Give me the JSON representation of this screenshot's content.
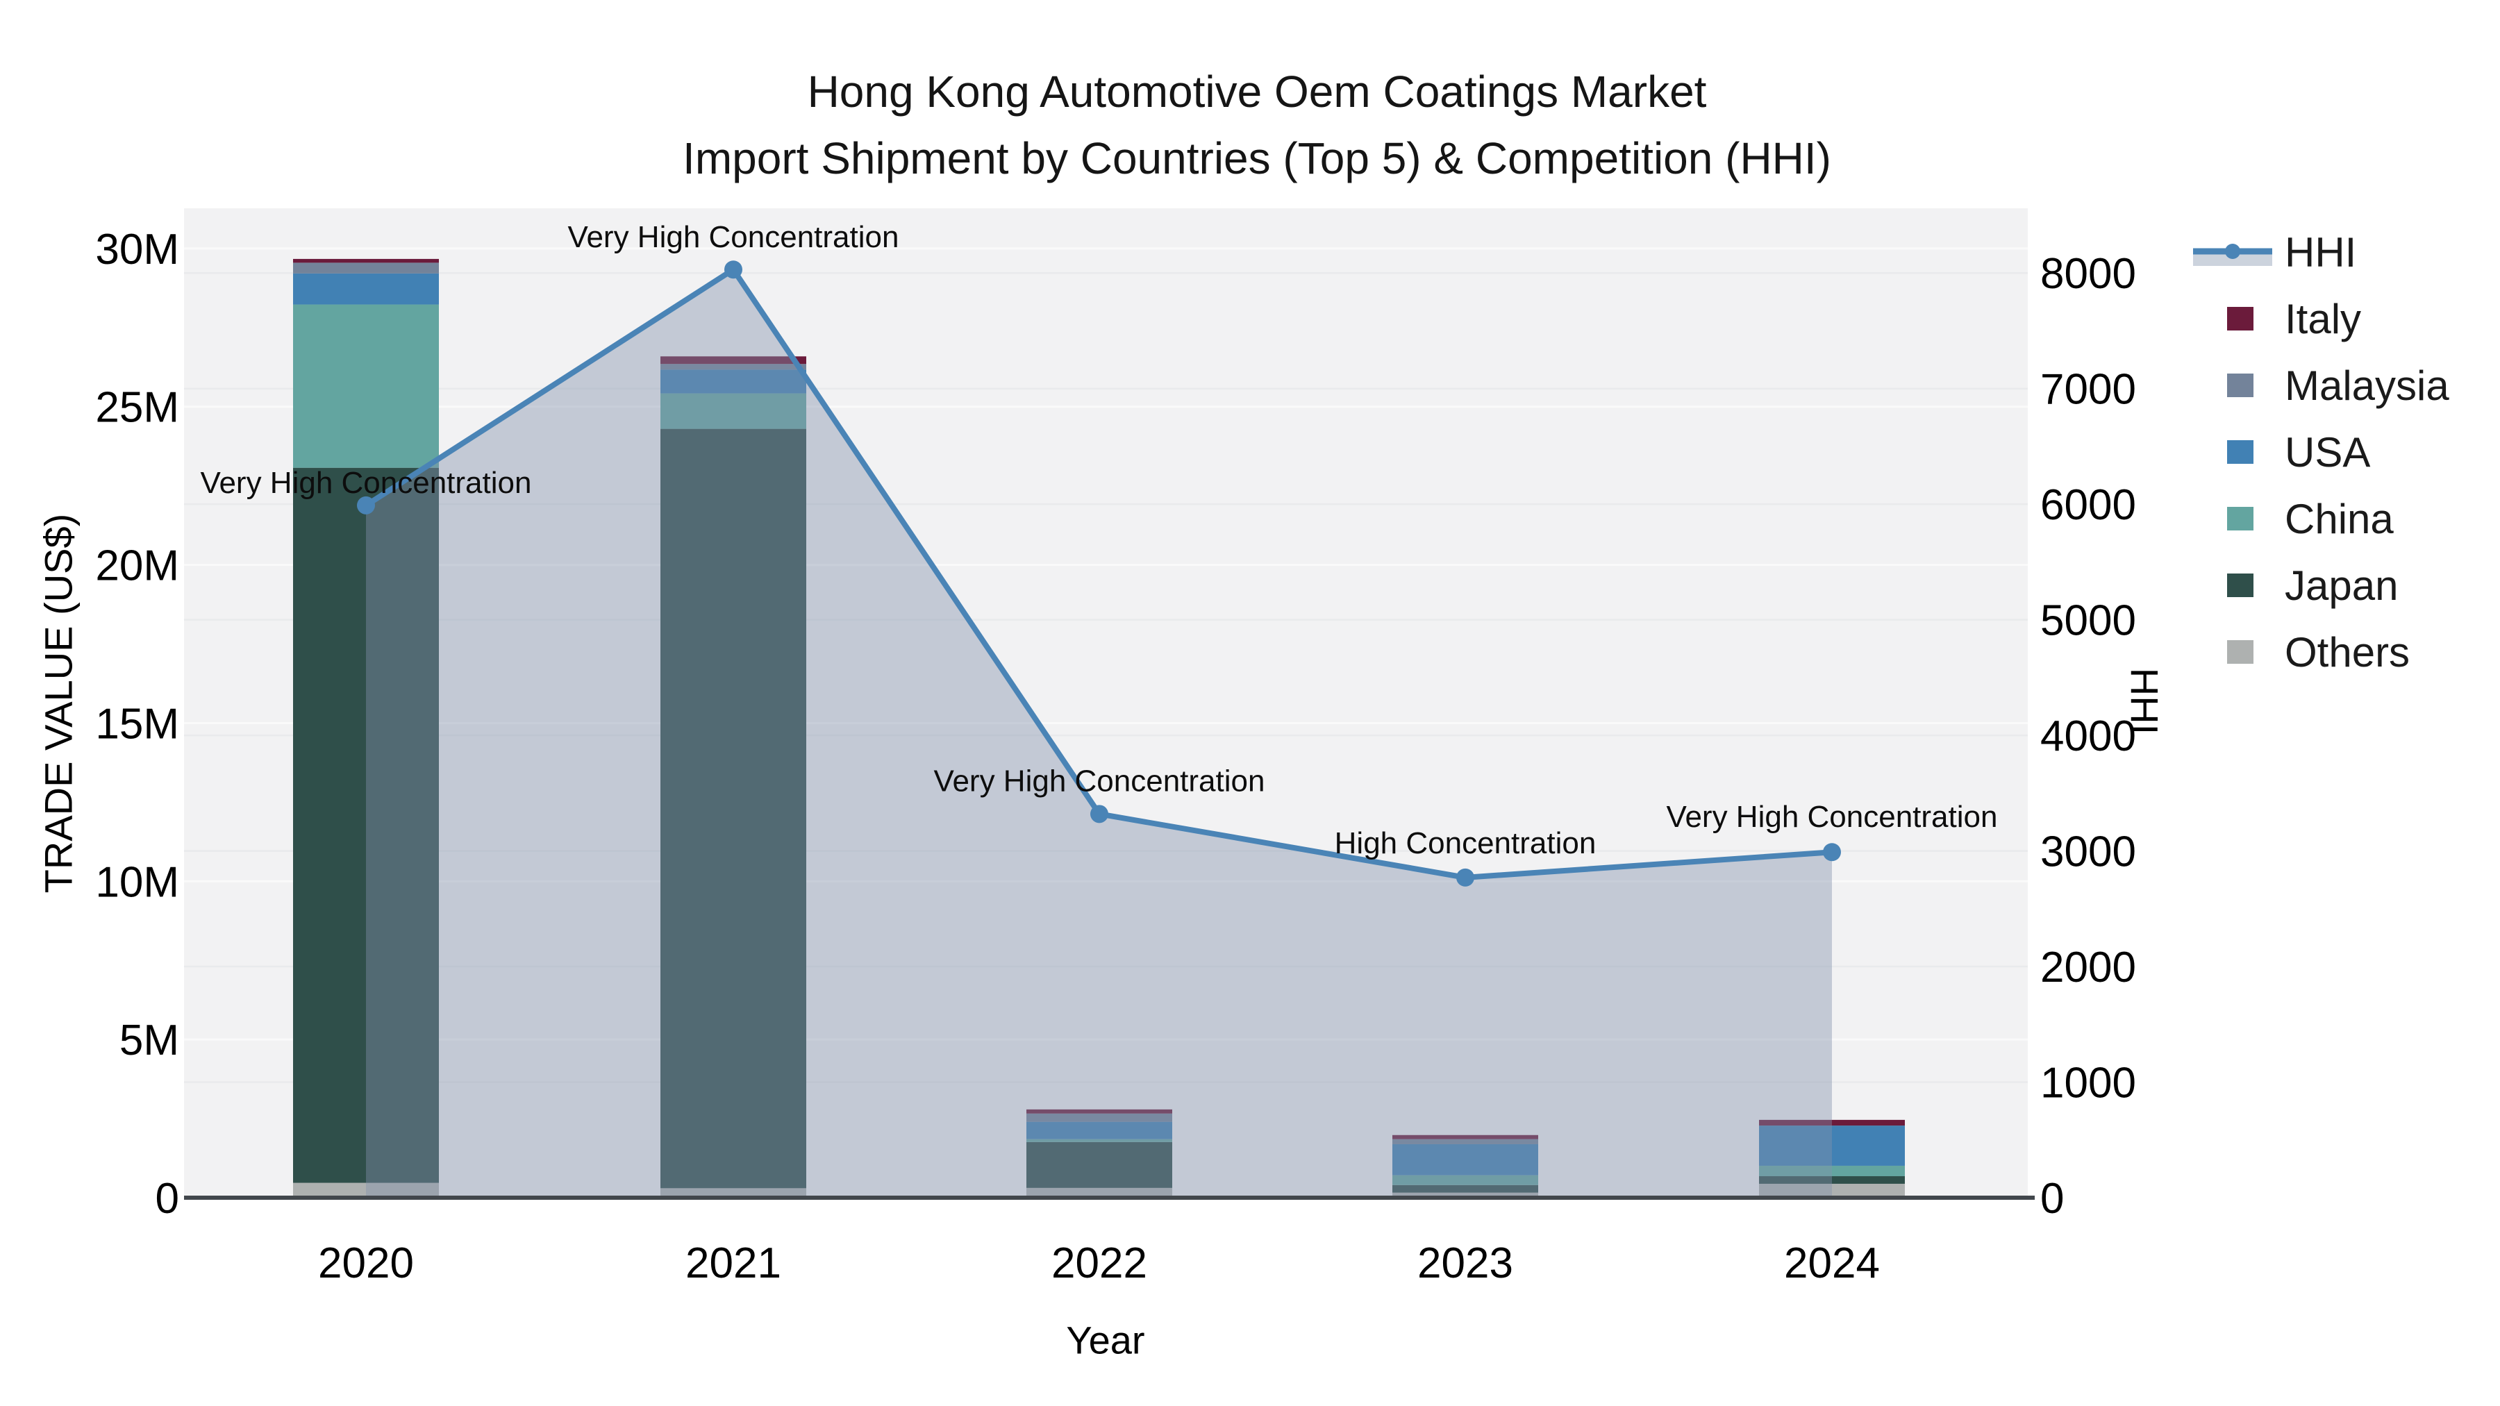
{
  "title": {
    "line1": "Hong Kong Automotive Oem Coatings Market",
    "line2": "Import Shipment by Countries (Top 5) & Competition (HHI)"
  },
  "axes": {
    "left": {
      "title": "TRADE VALUE (US$)",
      "ticks": [
        "0",
        "5M",
        "10M",
        "15M",
        "20M",
        "25M",
        "30M"
      ],
      "tick_values_musd": [
        0,
        5,
        10,
        15,
        20,
        25,
        30
      ]
    },
    "right": {
      "title": "HHI",
      "ticks": [
        "0",
        "1000",
        "2000",
        "3000",
        "4000",
        "5000",
        "6000",
        "7000",
        "8000"
      ],
      "tick_values": [
        0,
        1000,
        2000,
        3000,
        4000,
        5000,
        6000,
        7000,
        8000
      ]
    },
    "bottom": {
      "title": "Year",
      "ticks": [
        "2020",
        "2021",
        "2022",
        "2023",
        "2024"
      ]
    }
  },
  "legend": {
    "items": [
      {
        "label": "HHI",
        "type": "line-area",
        "color": "#4A84B6"
      },
      {
        "label": "Italy",
        "type": "swatch",
        "color": "#6B1B3B"
      },
      {
        "label": "Malaysia",
        "type": "swatch",
        "color": "#73839A"
      },
      {
        "label": "USA",
        "type": "swatch",
        "color": "#4181B4"
      },
      {
        "label": "China",
        "type": "swatch",
        "color": "#63A5A0"
      },
      {
        "label": "Japan",
        "type": "swatch",
        "color": "#2F4F4A"
      },
      {
        "label": "Others",
        "type": "swatch",
        "color": "#AEB1B0"
      }
    ]
  },
  "colors": {
    "plot_background": "#f2f2f3",
    "page_background": "#ffffff",
    "grid_left": "#fafafa",
    "grid_right": "#e9eaec",
    "x_axis_line": "#42474c",
    "hhi_line": "#4A84B6",
    "hhi_area_fill": "rgba(130,146,171,0.42)"
  },
  "chart_data": {
    "type": "bar",
    "subtype": "stacked-bars-with-dual-axis-line",
    "categories": [
      "2020",
      "2021",
      "2022",
      "2023",
      "2024"
    ],
    "bar_unit": "USD millions (left axis, TRADE VALUE US$)",
    "stack_order_bottom_to_top": [
      "Others",
      "Japan",
      "China",
      "USA",
      "Malaysia",
      "Italy"
    ],
    "series": [
      {
        "name": "Others",
        "color": "#AEB1B0",
        "values": [
          0.47,
          0.3,
          0.31,
          0.16,
          0.44
        ]
      },
      {
        "name": "Japan",
        "color": "#2F4F4A",
        "values": [
          22.6,
          24.0,
          1.45,
          0.24,
          0.24
        ]
      },
      {
        "name": "China",
        "color": "#63A5A0",
        "values": [
          5.16,
          1.12,
          0.09,
          0.31,
          0.33
        ]
      },
      {
        "name": "USA",
        "color": "#4181B4",
        "values": [
          0.98,
          0.75,
          0.55,
          0.98,
          1.27
        ]
      },
      {
        "name": "Malaysia",
        "color": "#73839A",
        "values": [
          0.34,
          0.18,
          0.26,
          0.16,
          0.0
        ]
      },
      {
        "name": "Italy",
        "color": "#6B1B3B",
        "values": [
          0.12,
          0.24,
          0.13,
          0.13,
          0.18
        ]
      }
    ],
    "bar_totals_musd": [
      29.67,
      26.59,
      2.79,
      1.98,
      2.46
    ],
    "line_series": {
      "name": "HHI",
      "axis": "right",
      "color": "#4A84B6",
      "area_fill": "rgba(130,146,171,0.42)",
      "values": [
        5990,
        8030,
        3320,
        2770,
        2990
      ]
    },
    "annotations": [
      {
        "category": "2020",
        "text": "Very High Concentration"
      },
      {
        "category": "2021",
        "text": "Very High Concentration"
      },
      {
        "category": "2022",
        "text": "Very High Concentration"
      },
      {
        "category": "2023",
        "text": "High Concentration"
      },
      {
        "category": "2024",
        "text": "Very High Concentration"
      }
    ],
    "ylim_left_musd": [
      0,
      31.27
    ],
    "ylim_right": [
      0,
      8560
    ],
    "grid": true,
    "legend_position": "right-outside",
    "xlabel": "Year",
    "ylabel_left": "TRADE VALUE (US$)",
    "ylabel_right": "HHI"
  }
}
